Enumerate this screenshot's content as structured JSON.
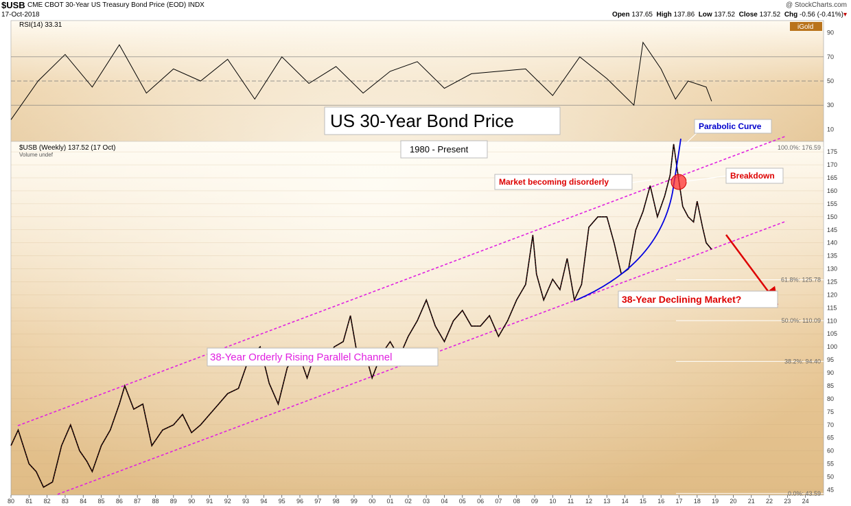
{
  "header": {
    "symbol": "$USB",
    "description": "CME CBOT 30-Year US Treasury Bond Price (EOD)  INDX",
    "date": "17-Oct-2018",
    "credit": "@ StockCharts.com",
    "open_label": "Open",
    "open": "137.65",
    "high_label": "High",
    "high": "137.86",
    "low_label": "Low",
    "low": "137.52",
    "close_label": "Close",
    "close": "137.52",
    "chg_label": "Chg",
    "chg": "-0.56 (-0.41%)"
  },
  "rsi_panel": {
    "label": "RSI(14) 33.31",
    "badge": "iGold",
    "yticks": [
      10,
      30,
      50,
      70,
      90
    ],
    "levels": [
      30,
      50,
      70
    ]
  },
  "price_panel": {
    "legend_line1": "$USB (Weekly) 137.52 (17 Oct)",
    "legend_line2": "Volume undef",
    "yticks": [
      45,
      50,
      55,
      60,
      65,
      70,
      75,
      80,
      85,
      90,
      95,
      100,
      105,
      110,
      115,
      120,
      125,
      130,
      135,
      140,
      145,
      150,
      155,
      160,
      165,
      170,
      175
    ]
  },
  "fib_levels": [
    {
      "label": "100.0%: 176.59",
      "value": 176.59
    },
    {
      "label": "61.8%: 125.78",
      "value": 125.78
    },
    {
      "label": "50.0%: 110.09",
      "value": 110.09
    },
    {
      "label": "38.2%: 94.40",
      "value": 94.4
    },
    {
      "label": "0.0%: 43.59",
      "value": 43.59
    }
  ],
  "x_axis": {
    "labels": [
      "80",
      "81",
      "82",
      "83",
      "84",
      "85",
      "86",
      "87",
      "88",
      "89",
      "90",
      "91",
      "92",
      "93",
      "94",
      "95",
      "96",
      "97",
      "98",
      "99",
      "00",
      "01",
      "02",
      "03",
      "04",
      "05",
      "06",
      "07",
      "08",
      "09",
      "10",
      "11",
      "12",
      "13",
      "14",
      "15",
      "16",
      "17",
      "18",
      "19",
      "20",
      "21",
      "22",
      "23",
      "24"
    ],
    "start_year": 1980,
    "end_year": 2025
  },
  "annotations": {
    "title": "US 30-Year Bond Price",
    "subtitle": "1980 - Present",
    "parabolic": "Parabolic Curve",
    "disorderly": "Market becoming disorderly",
    "breakdown": "Breakdown",
    "declining": "38-Year Declining Market?",
    "channel": "38-Year Orderly Rising Parallel Channel"
  },
  "colors": {
    "channel": "#e020e0",
    "curve": "#0000e0",
    "red": "#dd0000",
    "bars": "#000000",
    "grid": "#888888"
  },
  "chart_data": {
    "type": "line",
    "title": "US 30-Year Bond Price",
    "subtitle": "1980 - Present",
    "series": [
      {
        "name": "$USB (Weekly)",
        "x": [
          1980.0,
          1980.4,
          1981.0,
          1981.4,
          1981.8,
          1982.3,
          1982.8,
          1983.3,
          1983.8,
          1984.2,
          1984.5,
          1985.0,
          1985.5,
          1986.0,
          1986.3,
          1986.8,
          1987.3,
          1987.8,
          1988.4,
          1989.0,
          1989.5,
          1990.0,
          1990.5,
          1991.0,
          1991.5,
          1992.0,
          1992.6,
          1993.2,
          1993.8,
          1994.3,
          1994.8,
          1995.3,
          1995.9,
          1996.4,
          1996.9,
          1997.4,
          1997.9,
          1998.4,
          1998.8,
          1999.2,
          1999.8,
          2000.0,
          2000.5,
          2001.0,
          2001.5,
          2002.0,
          2002.5,
          2003.0,
          2003.5,
          2004.0,
          2004.5,
          2005.0,
          2005.5,
          2006.0,
          2006.5,
          2007.0,
          2007.5,
          2008.0,
          2008.5,
          2008.9,
          2009.1,
          2009.5,
          2010.0,
          2010.4,
          2010.8,
          2011.2,
          2011.6,
          2012.0,
          2012.5,
          2013.0,
          2013.4,
          2013.8,
          2014.2,
          2014.6,
          2015.0,
          2015.4,
          2015.8,
          2016.2,
          2016.5,
          2016.7,
          2016.9,
          2017.2,
          2017.5,
          2017.8,
          2018.0,
          2018.3,
          2018.5,
          2018.8
        ],
        "values": [
          62,
          68,
          55,
          52,
          46,
          48,
          62,
          70,
          60,
          56,
          52,
          62,
          68,
          78,
          85,
          76,
          78,
          62,
          68,
          70,
          74,
          67,
          70,
          74,
          78,
          82,
          84,
          96,
          100,
          86,
          78,
          92,
          98,
          88,
          99,
          94,
          100,
          102,
          112,
          96,
          93,
          88,
          97,
          102,
          96,
          104,
          110,
          118,
          108,
          102,
          110,
          114,
          108,
          108,
          112,
          104,
          110,
          118,
          124,
          143,
          128,
          118,
          126,
          122,
          134,
          118,
          124,
          146,
          150,
          150,
          140,
          128,
          130,
          145,
          152,
          162,
          150,
          158,
          166,
          178,
          168,
          154,
          150,
          148,
          156,
          146,
          140,
          137.52
        ]
      }
    ],
    "ylabel": "",
    "ylim": [
      43,
      179
    ],
    "xlim": [
      1980,
      2025
    ],
    "rsi": {
      "name": "RSI(14)",
      "last": 33.31,
      "x": [
        1980.0,
        1981.5,
        1983,
        1984.5,
        1986,
        1987.5,
        1989,
        1990.5,
        1992,
        1993.5,
        1995,
        1996.5,
        1998,
        1999.5,
        2001,
        2002.5,
        2004,
        2005.5,
        2007,
        2008.5,
        2010,
        2011.5,
        2013,
        2014.5,
        2015,
        2016,
        2016.8,
        2017.5,
        2018.5,
        2018.8
      ],
      "values": [
        18,
        50,
        72,
        45,
        80,
        40,
        60,
        50,
        68,
        35,
        70,
        48,
        62,
        40,
        58,
        66,
        44,
        56,
        58,
        60,
        38,
        70,
        52,
        30,
        82,
        60,
        35,
        50,
        45,
        33.31
      ],
      "ylim": [
        0,
        100
      ]
    },
    "grid": true
  }
}
